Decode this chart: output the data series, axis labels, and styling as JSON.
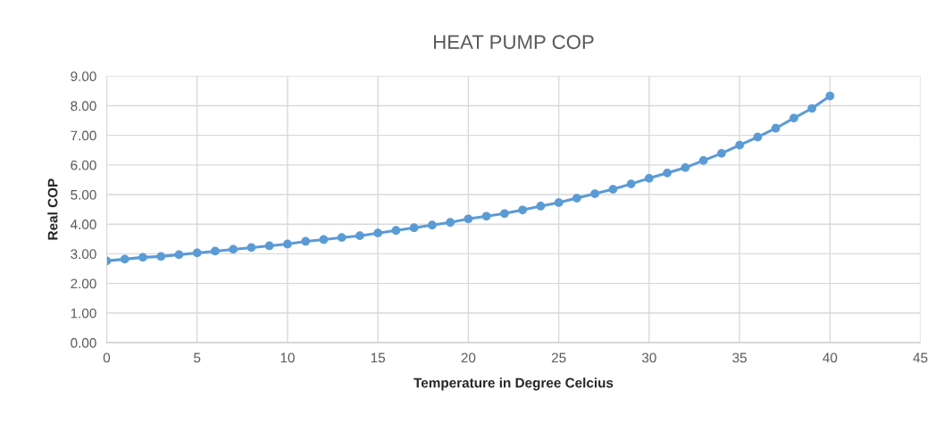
{
  "chart_data": {
    "type": "line",
    "title": "HEAT PUMP COP",
    "xlabel": "Temperature in Degree Celcius",
    "ylabel": "Real COP",
    "x": [
      0,
      1,
      2,
      3,
      4,
      5,
      6,
      7,
      8,
      9,
      10,
      11,
      12,
      13,
      14,
      15,
      16,
      17,
      18,
      19,
      20,
      21,
      22,
      23,
      24,
      25,
      26,
      27,
      28,
      29,
      30,
      31,
      32,
      33,
      34,
      35,
      36,
      37,
      38,
      39,
      40
    ],
    "series": [
      {
        "color": "#5b9bd5",
        "values": [
          2.76,
          2.82,
          2.88,
          2.91,
          2.97,
          3.03,
          3.09,
          3.15,
          3.21,
          3.27,
          3.33,
          3.42,
          3.48,
          3.55,
          3.61,
          3.7,
          3.79,
          3.88,
          3.97,
          4.06,
          4.18,
          4.27,
          4.36,
          4.48,
          4.61,
          4.73,
          4.88,
          5.03,
          5.18,
          5.36,
          5.55,
          5.73,
          5.91,
          6.15,
          6.39,
          6.67,
          6.94,
          7.24,
          7.58,
          7.91,
          8.33
        ]
      }
    ],
    "xlim": [
      0,
      45
    ],
    "xticks": [
      0,
      5,
      10,
      15,
      20,
      25,
      30,
      35,
      40,
      45
    ],
    "ylim": [
      0,
      9
    ],
    "yticks": [
      {
        "value": 0,
        "label": "0.00"
      },
      {
        "value": 1,
        "label": "1.00"
      },
      {
        "value": 2,
        "label": "2.00"
      },
      {
        "value": 3,
        "label": "3.00"
      },
      {
        "value": 4,
        "label": "4.00"
      },
      {
        "value": 5,
        "label": "5.00"
      },
      {
        "value": 6,
        "label": "6.00"
      },
      {
        "value": 7,
        "label": "7.00"
      },
      {
        "value": 8,
        "label": "8.00"
      },
      {
        "value": 9,
        "label": "9.00"
      }
    ],
    "grid": true,
    "marker": "circle",
    "line_style": "solid"
  }
}
